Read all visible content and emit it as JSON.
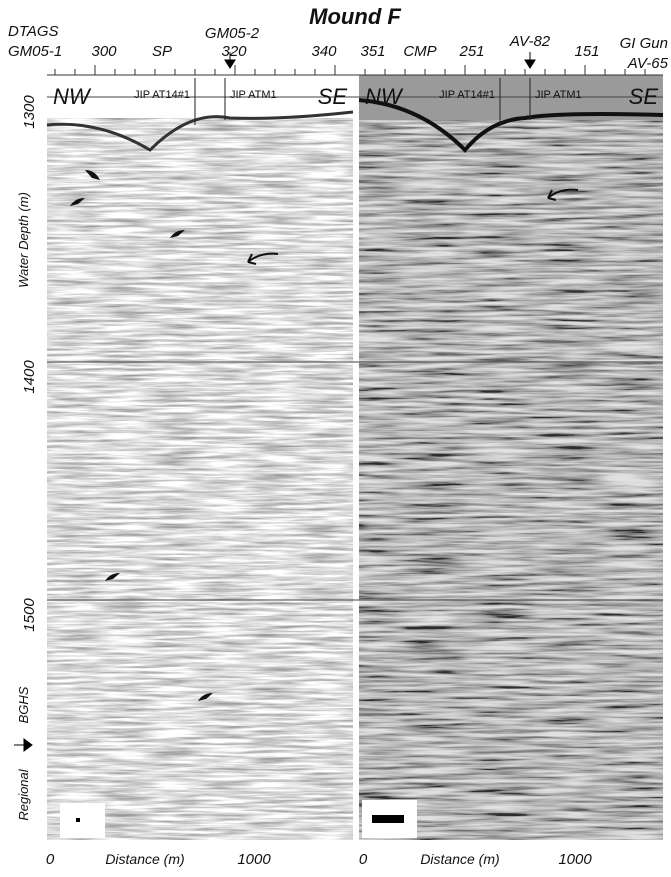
{
  "title": "Mound F",
  "header": {
    "left_source": "DTAGS",
    "left_line": "GM05-1",
    "left_axis": "SP",
    "left_ticks": [
      "300",
      "320",
      "340"
    ],
    "left_marker": "GM05-2",
    "right_ticks": [
      "351",
      "251",
      "151"
    ],
    "right_axis": "CMP",
    "right_marker": "AV-82",
    "right_source": "GI Gun",
    "right_line": "AV-65"
  },
  "panels": [
    {
      "left_dir": "NW",
      "right_dir": "SE",
      "wells": [
        "JIP AT14#1",
        "JIP ATM1"
      ],
      "x_ticks": [
        "0",
        "1000"
      ],
      "x_label": "Distance (m)"
    },
    {
      "left_dir": "NW",
      "right_dir": "SE",
      "wells": [
        "JIP AT14#1",
        "JIP ATM1"
      ],
      "x_ticks": [
        "0",
        "1000"
      ],
      "x_label": "Distance (m)"
    }
  ],
  "y_axis": {
    "ticks": [
      "1300",
      "1400",
      "1500"
    ],
    "label": "Water Depth (m)",
    "bghs_label": [
      "Regional",
      "BGHS"
    ]
  }
}
